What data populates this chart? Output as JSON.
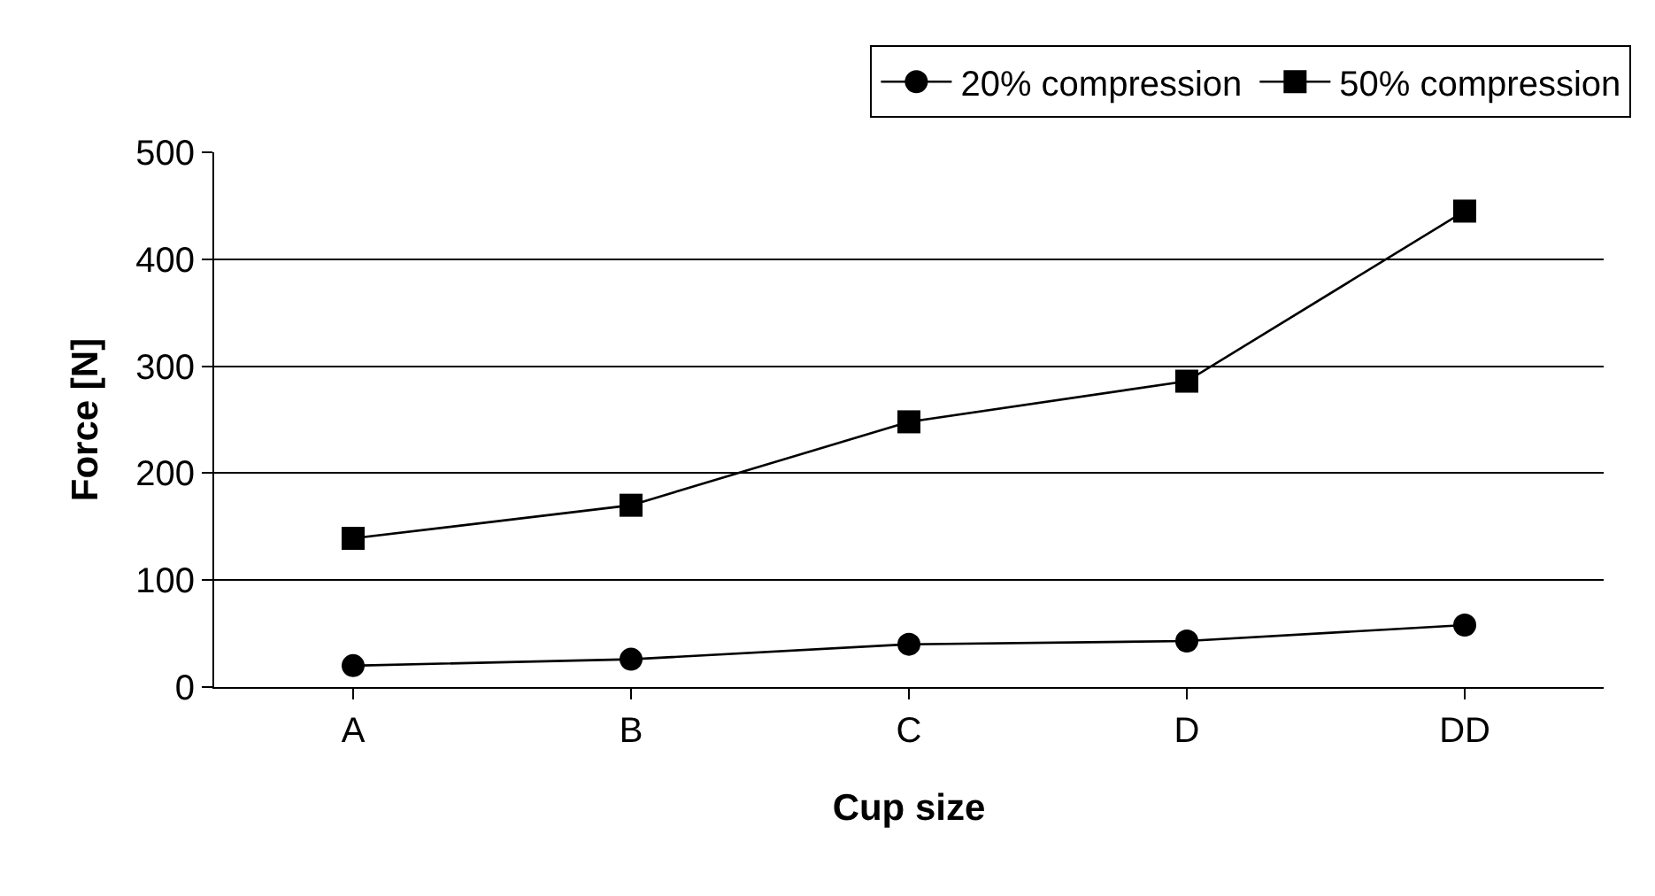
{
  "chart_data": {
    "type": "line",
    "xlabel": "Cup size",
    "ylabel": "Force [N]",
    "categories": [
      "A",
      "B",
      "C",
      "D",
      "DD"
    ],
    "series": [
      {
        "name": "20% compression",
        "color": "#000000",
        "marker": "circle",
        "values": [
          20,
          26,
          40,
          43,
          58
        ]
      },
      {
        "name": "50% compression",
        "color": "#000000",
        "marker": "square",
        "values": [
          139,
          170,
          248,
          286,
          445
        ]
      }
    ],
    "ylim": [
      0,
      500
    ],
    "yticks": [
      0,
      100,
      200,
      300,
      400,
      500
    ],
    "grid": "y",
    "legend": "top right",
    "line_style": "solid"
  }
}
